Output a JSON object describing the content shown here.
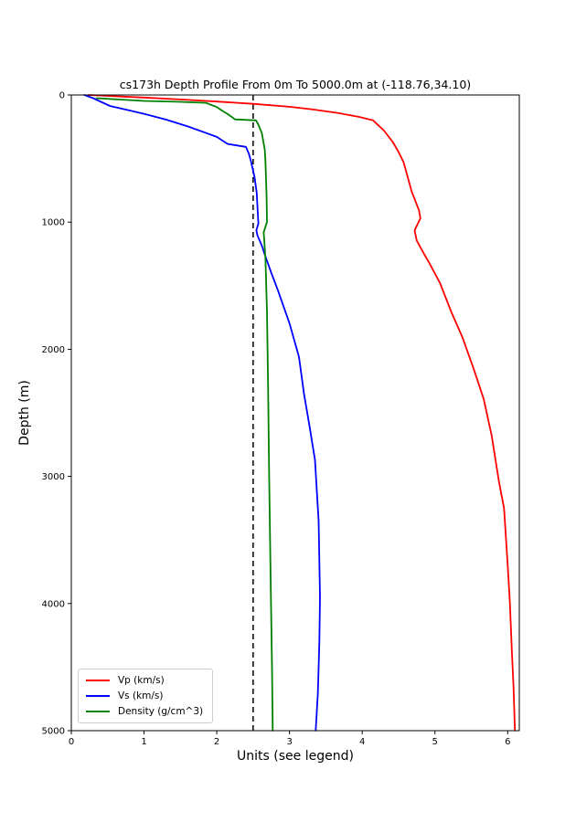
{
  "chart_data": {
    "type": "line",
    "title": "cs173h Depth Profile From 0m To 5000.0m at (-118.76,34.10)",
    "xlabel": "Units (see legend)",
    "ylabel": "Depth (m)",
    "xlim": [
      0,
      6.16
    ],
    "ylim": [
      0,
      5000
    ],
    "y_inverted": true,
    "xticks": [
      0,
      1,
      2,
      3,
      4,
      5,
      6
    ],
    "yticks": [
      0,
      1000,
      2000,
      3000,
      4000,
      5000
    ],
    "grid": false,
    "legend_position": "lower left",
    "point_format": "[value_in_units, depth_m]",
    "vline": {
      "x": 2.5,
      "style": "dashed",
      "color": "#000000"
    },
    "series": [
      {
        "id": "vp",
        "name": "Vp (km/s)",
        "color": "#ff0000",
        "points": [
          [
            0.24,
            0
          ],
          [
            0.6,
            10
          ],
          [
            1.0,
            20
          ],
          [
            1.5,
            35
          ],
          [
            2.0,
            52
          ],
          [
            2.5,
            70
          ],
          [
            3.0,
            93
          ],
          [
            3.3,
            112
          ],
          [
            3.65,
            140
          ],
          [
            3.95,
            172
          ],
          [
            4.15,
            200
          ],
          [
            4.3,
            280
          ],
          [
            4.42,
            370
          ],
          [
            4.5,
            450
          ],
          [
            4.57,
            530
          ],
          [
            4.68,
            760
          ],
          [
            4.78,
            905
          ],
          [
            4.8,
            970
          ],
          [
            4.72,
            1065
          ],
          [
            4.75,
            1145
          ],
          [
            4.85,
            1250
          ],
          [
            4.92,
            1320
          ],
          [
            5.07,
            1480
          ],
          [
            5.22,
            1700
          ],
          [
            5.38,
            1910
          ],
          [
            5.53,
            2150
          ],
          [
            5.67,
            2390
          ],
          [
            5.78,
            2680
          ],
          [
            5.88,
            3040
          ],
          [
            5.95,
            3250
          ],
          [
            6.0,
            3700
          ],
          [
            6.03,
            3995
          ],
          [
            6.06,
            4400
          ],
          [
            6.08,
            4640
          ],
          [
            6.1,
            5000
          ]
        ]
      },
      {
        "id": "vs",
        "name": "Vs (km/s)",
        "color": "#0000ff",
        "points": [
          [
            0.18,
            0
          ],
          [
            0.3,
            25
          ],
          [
            0.53,
            86
          ],
          [
            0.75,
            115
          ],
          [
            1.0,
            148
          ],
          [
            1.31,
            195
          ],
          [
            1.6,
            247
          ],
          [
            1.86,
            300
          ],
          [
            2.0,
            330
          ],
          [
            2.15,
            385
          ],
          [
            2.4,
            408
          ],
          [
            2.44,
            460
          ],
          [
            2.47,
            520
          ],
          [
            2.52,
            650
          ],
          [
            2.55,
            770
          ],
          [
            2.565,
            935
          ],
          [
            2.572,
            1010
          ],
          [
            2.545,
            1065
          ],
          [
            2.56,
            1105
          ],
          [
            2.62,
            1185
          ],
          [
            2.66,
            1255
          ],
          [
            2.75,
            1400
          ],
          [
            2.84,
            1535
          ],
          [
            3.0,
            1795
          ],
          [
            3.13,
            2060
          ],
          [
            3.2,
            2350
          ],
          [
            3.28,
            2620
          ],
          [
            3.35,
            2870
          ],
          [
            3.4,
            3350
          ],
          [
            3.42,
            3950
          ],
          [
            3.41,
            4300
          ],
          [
            3.39,
            4700
          ],
          [
            3.36,
            5000
          ]
        ]
      },
      {
        "id": "density",
        "name": "Density (g/cm^3)",
        "color": "#008000",
        "points": [
          [
            0.35,
            25
          ],
          [
            1.0,
            47
          ],
          [
            1.5,
            54
          ],
          [
            1.85,
            62
          ],
          [
            2.0,
            95
          ],
          [
            2.07,
            122
          ],
          [
            2.15,
            150
          ],
          [
            2.22,
            178
          ],
          [
            2.25,
            192
          ],
          [
            2.54,
            200
          ],
          [
            2.57,
            230
          ],
          [
            2.62,
            300
          ],
          [
            2.66,
            430
          ],
          [
            2.67,
            530
          ],
          [
            2.685,
            800
          ],
          [
            2.69,
            1000
          ],
          [
            2.645,
            1080
          ],
          [
            2.655,
            1160
          ],
          [
            2.67,
            1300
          ],
          [
            2.69,
            1700
          ],
          [
            2.705,
            2280
          ],
          [
            2.72,
            3000
          ],
          [
            2.74,
            3800
          ],
          [
            2.76,
            4500
          ],
          [
            2.77,
            5000
          ]
        ]
      }
    ]
  }
}
